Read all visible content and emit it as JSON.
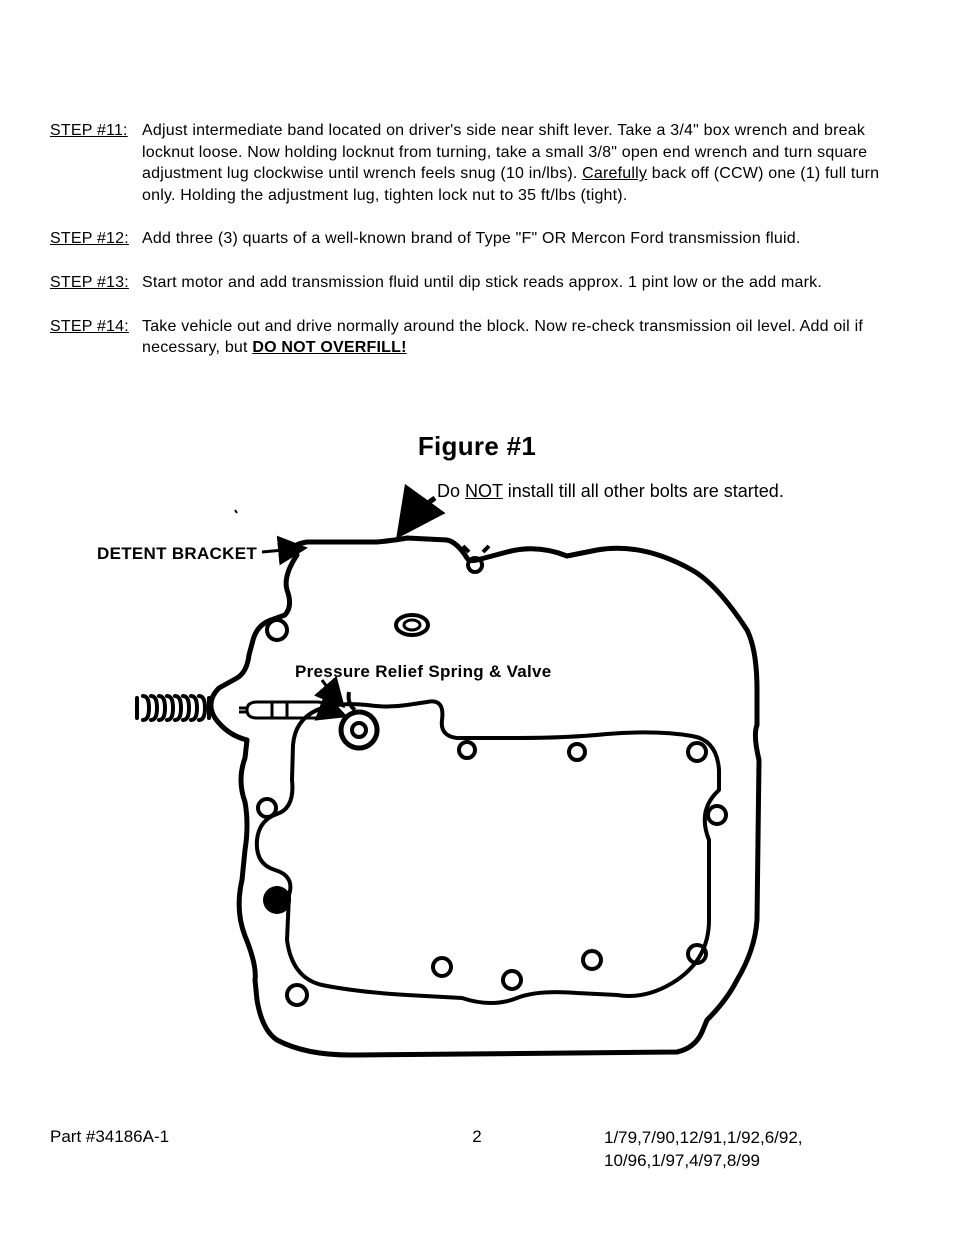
{
  "steps": [
    {
      "label": "STEP #11:",
      "segments": [
        {
          "t": "Adjust intermediate band located on driver's side near shift lever.  Take a 3/4\" box wrench and break locknut loose.  Now holding locknut from turning, take a small 3/8\" open end wrench and turn square adjustment lug clockwise until wrench feels snug (10 in/lbs).  "
        },
        {
          "t": "Carefully",
          "u": true
        },
        {
          "t": " back off (CCW) one (1) full turn only.  Holding the adjustment lug, tighten lock nut to 35 ft/lbs  (tight)."
        }
      ]
    },
    {
      "label": "STEP #12:",
      "segments": [
        {
          "t": "Add three (3) quarts of a well-known brand of Type \"F\" OR Mercon Ford transmission fluid."
        }
      ]
    },
    {
      "label": "STEP #13:",
      "segments": [
        {
          "t": "Start motor and add transmission fluid until dip stick reads approx. 1 pint low or the add mark."
        }
      ]
    },
    {
      "label": "STEP #14:",
      "segments": [
        {
          "t": "Take vehicle out and drive normally around the block.  Now re-check transmission oil level.  Add oil if necessary, but "
        },
        {
          "t": "DO NOT OVERFILL!",
          "bu": true
        }
      ]
    }
  ],
  "figure": {
    "title": "Figure #1",
    "labels": {
      "detent_bracket": "DETENT BRACKET",
      "pressure_relief": "Pressure Relief Spring & Valve",
      "note_pre": "Do ",
      "note_not": "NOT",
      "note_post": " install till all other bolts are started."
    }
  },
  "footer": {
    "part": "Part #34186A-1",
    "page": "2",
    "dates_line1": "1/79,7/90,12/91,1/92,6/92,",
    "dates_line2": "10/96,1/97,4/97,8/99"
  }
}
